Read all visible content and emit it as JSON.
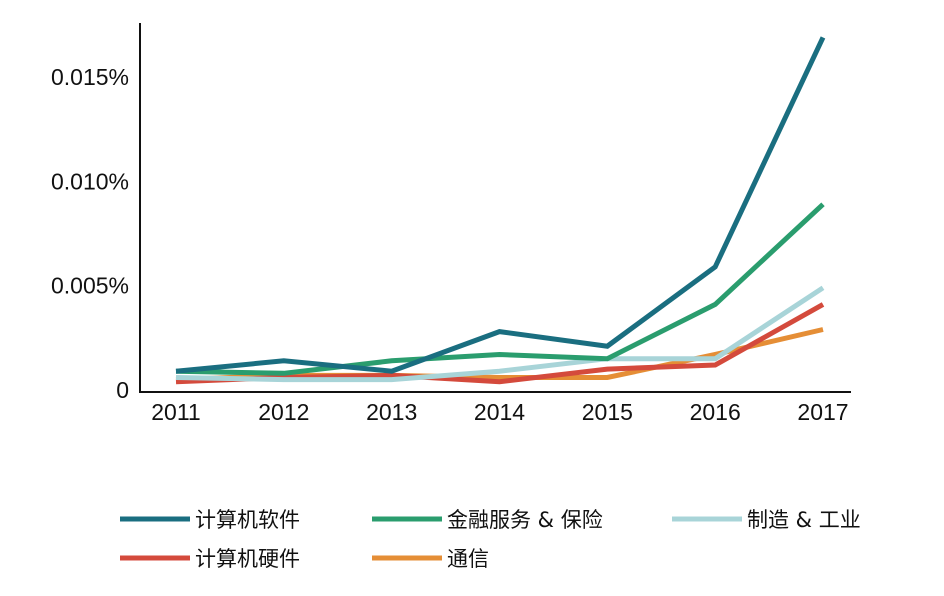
{
  "chart_data": {
    "type": "line",
    "title": "",
    "xlabel": "",
    "ylabel": "",
    "x": [
      "2011",
      "2012",
      "2013",
      "2014",
      "2015",
      "2016",
      "2017"
    ],
    "y_ticks": [
      {
        "value": 0,
        "label": "0"
      },
      {
        "value": 0.005,
        "label": "0.005%"
      },
      {
        "value": 0.01,
        "label": "0.010%"
      },
      {
        "value": 0.015,
        "label": "0.015%"
      }
    ],
    "ylim": [
      0,
      0.0175
    ],
    "grid": false,
    "legend_position": "bottom",
    "series": [
      {
        "name": "计算机软件",
        "color": "#1a6e80",
        "values": [
          0.0009,
          0.0014,
          0.0009,
          0.0028,
          0.0021,
          0.0059,
          0.0169
        ]
      },
      {
        "name": "金融服务 & 保险",
        "color": "#2a9d6e",
        "values": [
          0.0009,
          0.0008,
          0.0014,
          0.0017,
          0.0015,
          0.0041,
          0.0089
        ]
      },
      {
        "name": "制造 & 工业",
        "color": "#a8d4d8",
        "values": [
          0.0006,
          0.0005,
          0.0005,
          0.0009,
          0.0015,
          0.0015,
          0.0049
        ]
      },
      {
        "name": "计算机硬件",
        "color": "#d44a3c",
        "values": [
          0.0004,
          0.0006,
          0.0007,
          0.0004,
          0.001,
          0.0012,
          0.0041
        ]
      },
      {
        "name": "通信",
        "color": "#e58e36",
        "values": [
          0.0005,
          0.0007,
          0.0007,
          0.0006,
          0.0006,
          0.0017,
          0.0029
        ]
      }
    ]
  }
}
